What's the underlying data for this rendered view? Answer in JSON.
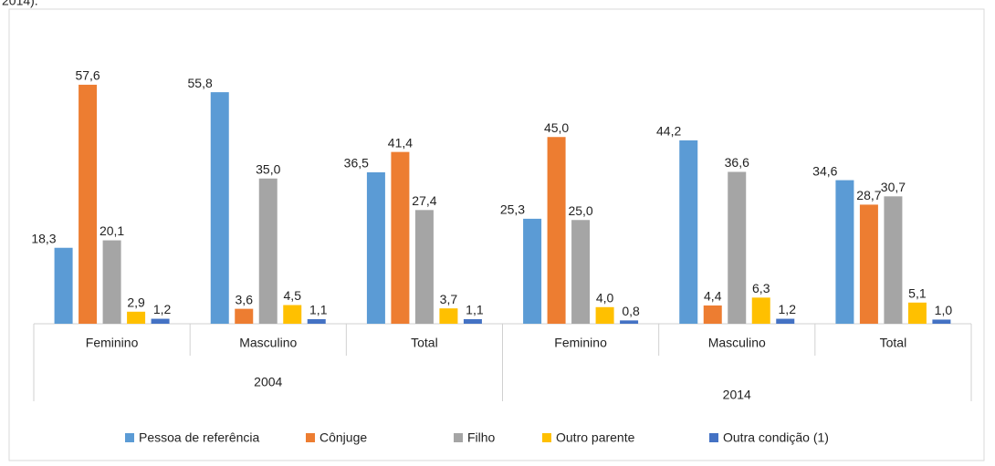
{
  "chart_data": {
    "type": "bar",
    "note": "2014).",
    "categories": [
      "Feminino",
      "Masculino",
      "Total",
      "Feminino",
      "Masculino",
      "Total"
    ],
    "group_labels": [
      "2004",
      "2014"
    ],
    "series": [
      {
        "name": "Pessoa de referência",
        "color": "#5b9bd5",
        "values": [
          18.3,
          55.8,
          36.5,
          25.3,
          44.2,
          34.6
        ],
        "value_labels": [
          "18,3",
          "55,8",
          "36,5",
          "25,3",
          "44,2",
          "34,6"
        ]
      },
      {
        "name": "Cônjuge",
        "color": "#ed7d31",
        "values": [
          57.6,
          3.6,
          41.4,
          45.0,
          4.4,
          28.7
        ],
        "value_labels": [
          "57,6",
          "3,6",
          "41,4",
          "45,0",
          "4,4",
          "28,7"
        ]
      },
      {
        "name": "Filho",
        "color": "#a5a5a5",
        "values": [
          20.1,
          35.0,
          27.4,
          25.0,
          36.6,
          30.7
        ],
        "value_labels": [
          "20,1",
          "35,0",
          "27,4",
          "25,0",
          "36,6",
          "30,7"
        ]
      },
      {
        "name": "Outro parente",
        "color": "#ffc000",
        "values": [
          2.9,
          4.5,
          3.7,
          4.0,
          6.3,
          5.1
        ],
        "value_labels": [
          "2,9",
          "4,5",
          "3,7",
          "4,0",
          "6,3",
          "5,1"
        ]
      },
      {
        "name": "Outra condição (1)",
        "color": "#4472c4",
        "values": [
          1.2,
          1.1,
          1.1,
          0.8,
          1.2,
          1.0
        ],
        "value_labels": [
          "1,2",
          "1,1",
          "1,1",
          "0,8",
          "1,2",
          "1,0"
        ]
      }
    ],
    "ylim": [
      0,
      60
    ],
    "legend": "bottom"
  }
}
